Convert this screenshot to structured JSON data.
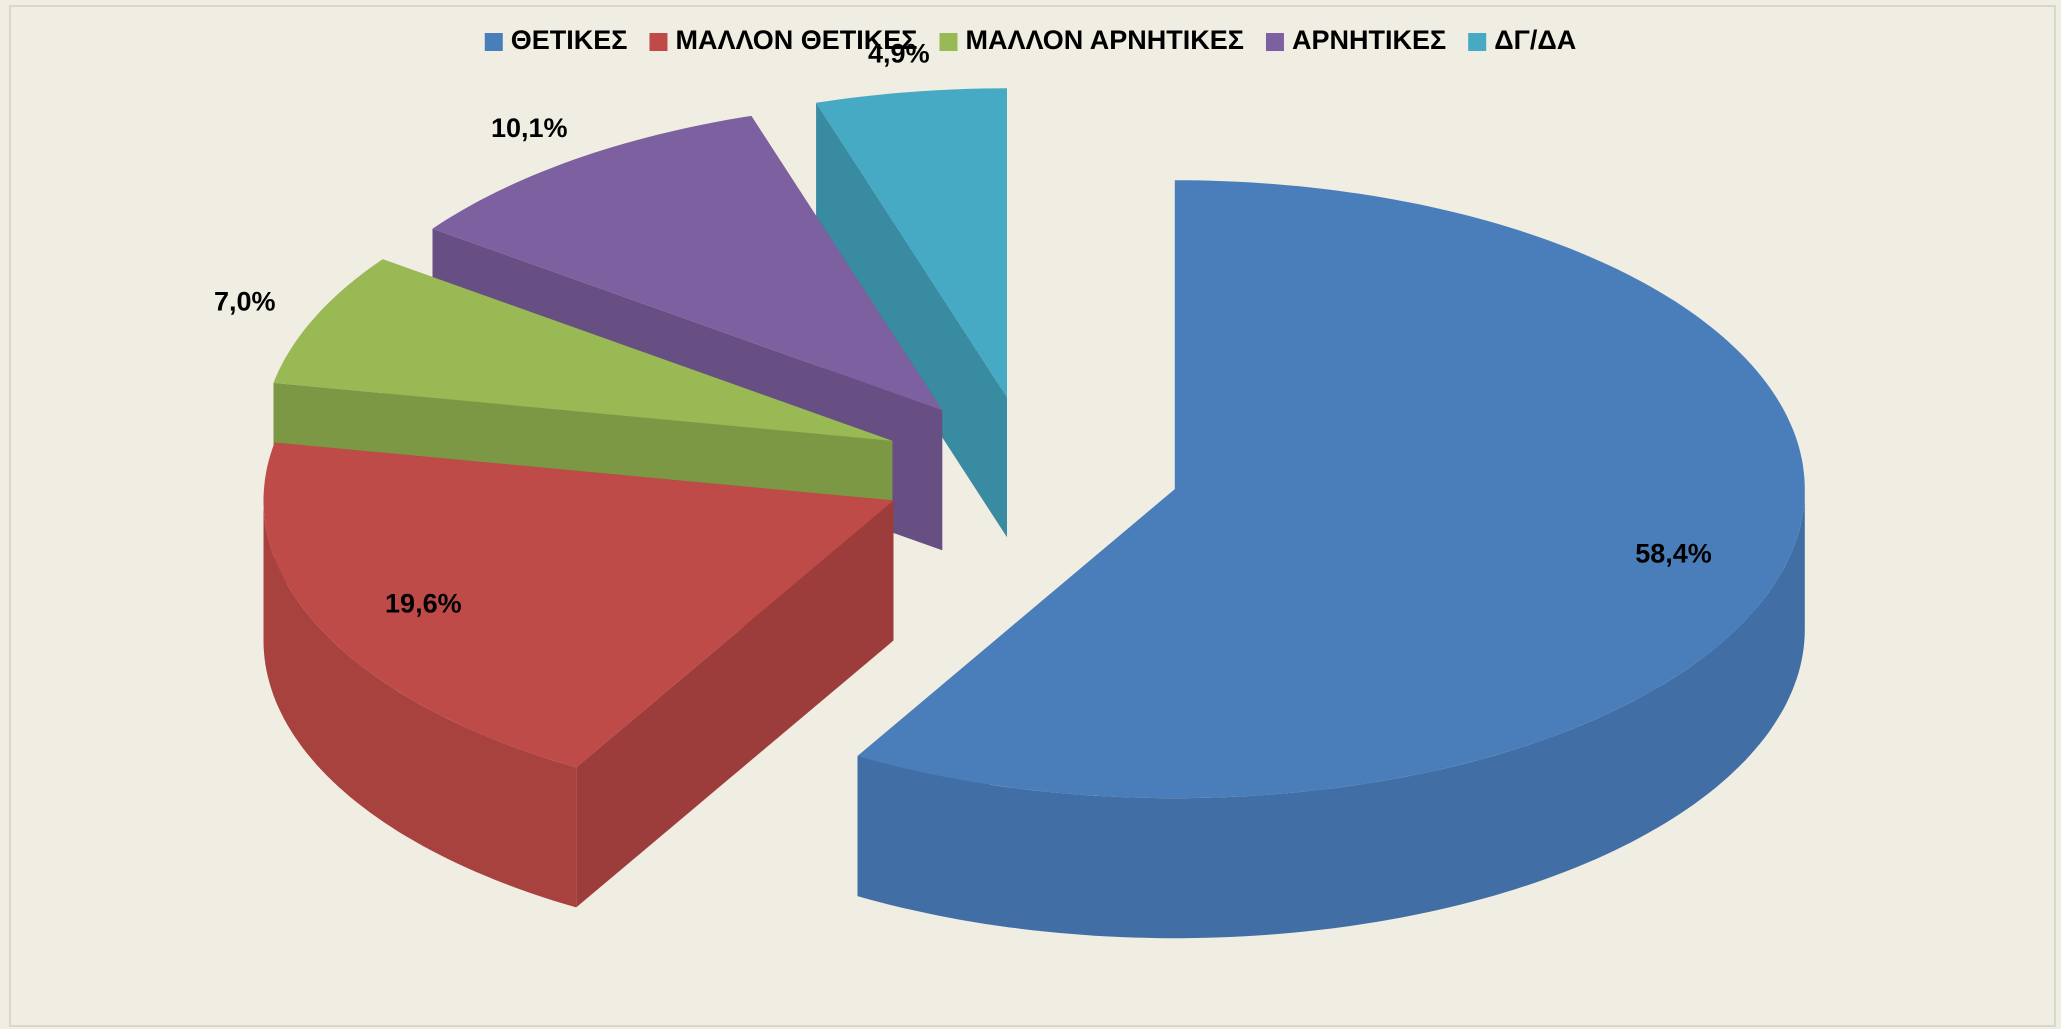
{
  "chart_data": {
    "type": "pie",
    "categories": [
      "ΘΕΤΙΚΕΣ",
      "ΜΑΛΛΟΝ ΘΕΤΙΚΕΣ",
      "ΜΑΛΛΟΝ ΑΡΝΗΤΙΚΕΣ",
      "ΑΡΝΗΤΙΚΕΣ",
      "ΔΓ/ΔΑ"
    ],
    "values": [
      58.4,
      19.6,
      7.0,
      10.1,
      4.9
    ],
    "value_labels": [
      "58,4%",
      "19,6%",
      "7,0%",
      "10,1%",
      "4,9%"
    ],
    "colors": [
      "#4a7ebb",
      "#be4b48",
      "#98b954",
      "#7d60a0",
      "#46aac5"
    ],
    "legend": "top"
  }
}
